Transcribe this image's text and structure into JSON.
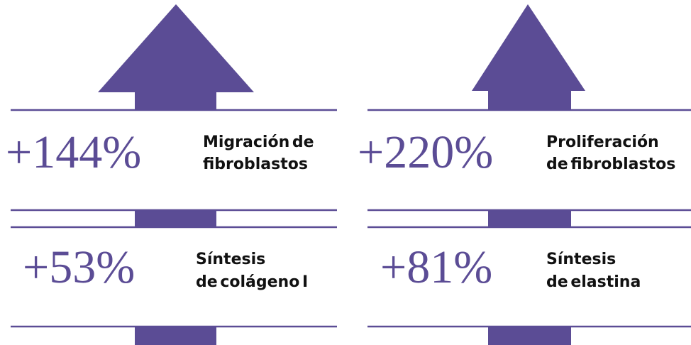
{
  "items": [
    {
      "value": "+144%",
      "label_line1": "Migración de",
      "label_line2": "fibroblastos"
    },
    {
      "value": "+220%",
      "label_line1": "Proliferación",
      "label_line2": "de fibroblastos"
    },
    {
      "value": "+53%",
      "label_line1": "Síntesis",
      "label_line2": "de colágeno I"
    },
    {
      "value": "+81%",
      "label_line1": "Síntesis",
      "label_line2": "de elastina"
    }
  ]
}
